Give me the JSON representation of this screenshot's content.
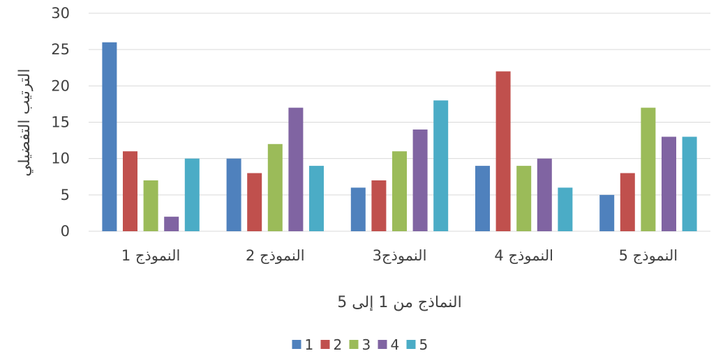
{
  "chart_data": {
    "type": "bar",
    "title": "",
    "xlabel": "النماذج من 1 إلى 5",
    "ylabel": "الترتيب التفضيلي",
    "ylim": [
      0,
      30
    ],
    "yticks": [
      0,
      5,
      10,
      15,
      20,
      25,
      30
    ],
    "grid": true,
    "legend_position": "bottom",
    "categories": [
      "النموذج 1",
      "النموذج 2",
      "النموذج3",
      "النموذج 4",
      "النموذج 5"
    ],
    "series": [
      {
        "name": "1",
        "color": "#4f81bd",
        "values": [
          26,
          10,
          6,
          9,
          5
        ]
      },
      {
        "name": "2",
        "color": "#c0504d",
        "values": [
          11,
          8,
          7,
          22,
          8
        ]
      },
      {
        "name": "3",
        "color": "#9bbb59",
        "values": [
          7,
          12,
          11,
          9,
          17
        ]
      },
      {
        "name": "4",
        "color": "#8064a2",
        "values": [
          2,
          17,
          14,
          10,
          13
        ]
      },
      {
        "name": "5",
        "color": "#4bacc6",
        "values": [
          10,
          9,
          18,
          6,
          13
        ]
      }
    ]
  }
}
